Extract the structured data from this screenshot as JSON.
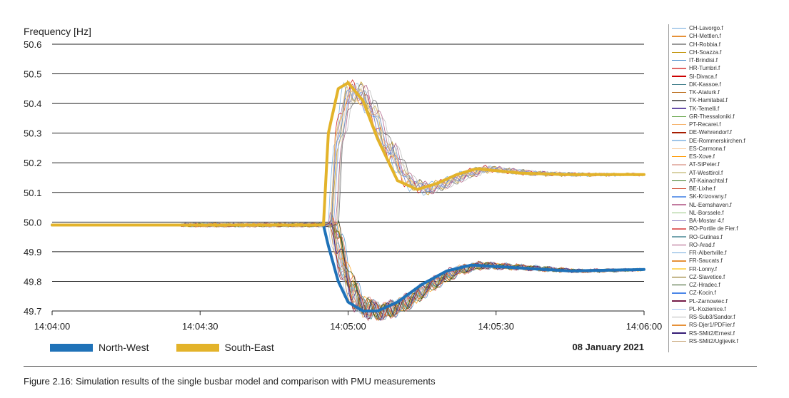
{
  "chart_data": {
    "type": "line",
    "ylabel": "Frequency [Hz]",
    "ylim": [
      49.7,
      50.6
    ],
    "yticks": [
      "50.6",
      "50.5",
      "50.4",
      "50.3",
      "50.2",
      "50.1",
      "50.0",
      "49.9",
      "49.8",
      "49.7"
    ],
    "xlim": [
      "14:04:00",
      "14:06:00"
    ],
    "xticks": [
      "14:04:00",
      "14:04:30",
      "14:05:00",
      "14:05:30",
      "14:06:00"
    ],
    "grid": "horizontal",
    "date_label": "08 January 2021",
    "series": [
      {
        "name": "North-West",
        "color": "#1f72b8",
        "x": [
          "14:04:00",
          "14:04:45",
          "14:04:55",
          "14:04:56",
          "14:04:58",
          "14:05:00",
          "14:05:03",
          "14:05:06",
          "14:05:10",
          "14:05:15",
          "14:05:20",
          "14:05:25",
          "14:05:35",
          "14:05:45",
          "14:06:00"
        ],
        "y": [
          49.99,
          49.99,
          49.99,
          49.92,
          49.8,
          49.73,
          49.7,
          49.7,
          49.73,
          49.79,
          49.835,
          49.855,
          49.845,
          49.835,
          49.84
        ]
      },
      {
        "name": "South-East",
        "color": "#e3b32a",
        "x": [
          "14:04:00",
          "14:04:45",
          "14:04:55",
          "14:04:56",
          "14:04:58",
          "14:05:00",
          "14:05:03",
          "14:05:06",
          "14:05:10",
          "14:05:14",
          "14:05:18",
          "14:05:22",
          "14:05:26",
          "14:05:35",
          "14:05:45",
          "14:06:00"
        ],
        "y": [
          49.99,
          49.99,
          49.99,
          50.3,
          50.45,
          50.47,
          50.41,
          50.28,
          50.14,
          50.11,
          50.13,
          50.16,
          50.18,
          50.165,
          50.16,
          50.16
        ]
      }
    ],
    "pmu_series": [
      {
        "name": "CH-Lavorgo.f",
        "color": "#6fa8dc"
      },
      {
        "name": "CH-Mettlen.f",
        "color": "#e69138"
      },
      {
        "name": "CH-Robbia.f",
        "color": "#999999"
      },
      {
        "name": "CH-Soazza.f",
        "color": "#bf9000"
      },
      {
        "name": "IT-Brindisi.f",
        "color": "#3d85c6"
      },
      {
        "name": "HR-Tumbri.f",
        "color": "#e06666"
      },
      {
        "name": "SI-Divaca.f",
        "color": "#cc0000"
      },
      {
        "name": "DK-Kassoe.f",
        "color": "#45818e"
      },
      {
        "name": "TK-Ataturk.f",
        "color": "#b45f06"
      },
      {
        "name": "TK-Hamitabat.f",
        "color": "#666666"
      },
      {
        "name": "TK-Temelli.f",
        "color": "#674ea7"
      },
      {
        "name": "GR-Thessaloniki.f",
        "color": "#6aa84f"
      },
      {
        "name": "PT-Recarei.f",
        "color": "#f6b26b"
      },
      {
        "name": "DE-Wehrendorf.f",
        "color": "#a61c00"
      },
      {
        "name": "DE-Rommerskirchen.f",
        "color": "#9fc5e8"
      },
      {
        "name": "ES-Carmona.f",
        "color": "#f9cb9c"
      },
      {
        "name": "ES-Xove.f",
        "color": "#ff9900"
      },
      {
        "name": "AT-StPeter.f",
        "color": "#e6b8af"
      },
      {
        "name": "AT-Westtirol.f",
        "color": "#d9d2a6"
      },
      {
        "name": "AT-Kainachtal.f",
        "color": "#38761d"
      },
      {
        "name": "BE-Lixhe.f",
        "color": "#cc4125"
      },
      {
        "name": "SK-Krizovany.f",
        "color": "#6d9eeb"
      },
      {
        "name": "NL-Eemshaven.f",
        "color": "#c27ba0"
      },
      {
        "name": "NL-Borssele.f",
        "color": "#93c47d"
      },
      {
        "name": "BA-Mostar 4.f",
        "color": "#8e7cc3"
      },
      {
        "name": "RO-Portile de Fier.f",
        "color": "#e06666"
      },
      {
        "name": "RO-Gutinas.f",
        "color": "#76a5af"
      },
      {
        "name": "RO-Arad.f",
        "color": "#a64d79"
      },
      {
        "name": "FR-Albertville.f",
        "color": "#6fa8dc"
      },
      {
        "name": "FR-Saucats.f",
        "color": "#e69138"
      },
      {
        "name": "FR-Lonny.f",
        "color": "#ffd966"
      },
      {
        "name": "CZ-Slavetice.f",
        "color": "#7f6000"
      },
      {
        "name": "CZ-Hradec.f",
        "color": "#274e13"
      },
      {
        "name": "CZ-Kocin.f",
        "color": "#4a86e8"
      },
      {
        "name": "PL-Zarnowiec.f",
        "color": "#741b47"
      },
      {
        "name": "PL-Kozienice.f",
        "color": "#a4c2f4"
      },
      {
        "name": "RS-Sub3/Sandor.f",
        "color": "#b7b7b7"
      },
      {
        "name": "RS-Djer1/PDFier.f",
        "color": "#e69138"
      },
      {
        "name": "RS-SMit2/Ernest.f",
        "color": "#351c75"
      },
      {
        "name": "RS-SMit2/Ugljevik.f",
        "color": "#c9a77a"
      }
    ]
  },
  "caption": "Figure 2.16: Simulation results of the single busbar model and comparison with PMU measurements"
}
